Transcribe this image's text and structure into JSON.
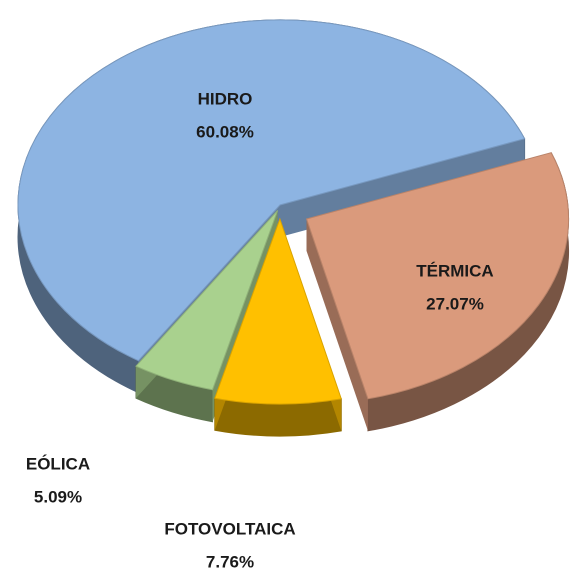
{
  "chart_data": {
    "type": "pie",
    "categories": [
      "HIDRO",
      "TÉRMICA",
      "FOTOVOLTAICA",
      "EÓLICA"
    ],
    "values": [
      60.08,
      27.07,
      7.76,
      5.09
    ],
    "value_labels": [
      "60.08%",
      "27.07%",
      "7.76%",
      "5.09%"
    ],
    "colors": [
      "#8db4e2",
      "#da9a7c",
      "#ffc000",
      "#a9d18e"
    ]
  }
}
